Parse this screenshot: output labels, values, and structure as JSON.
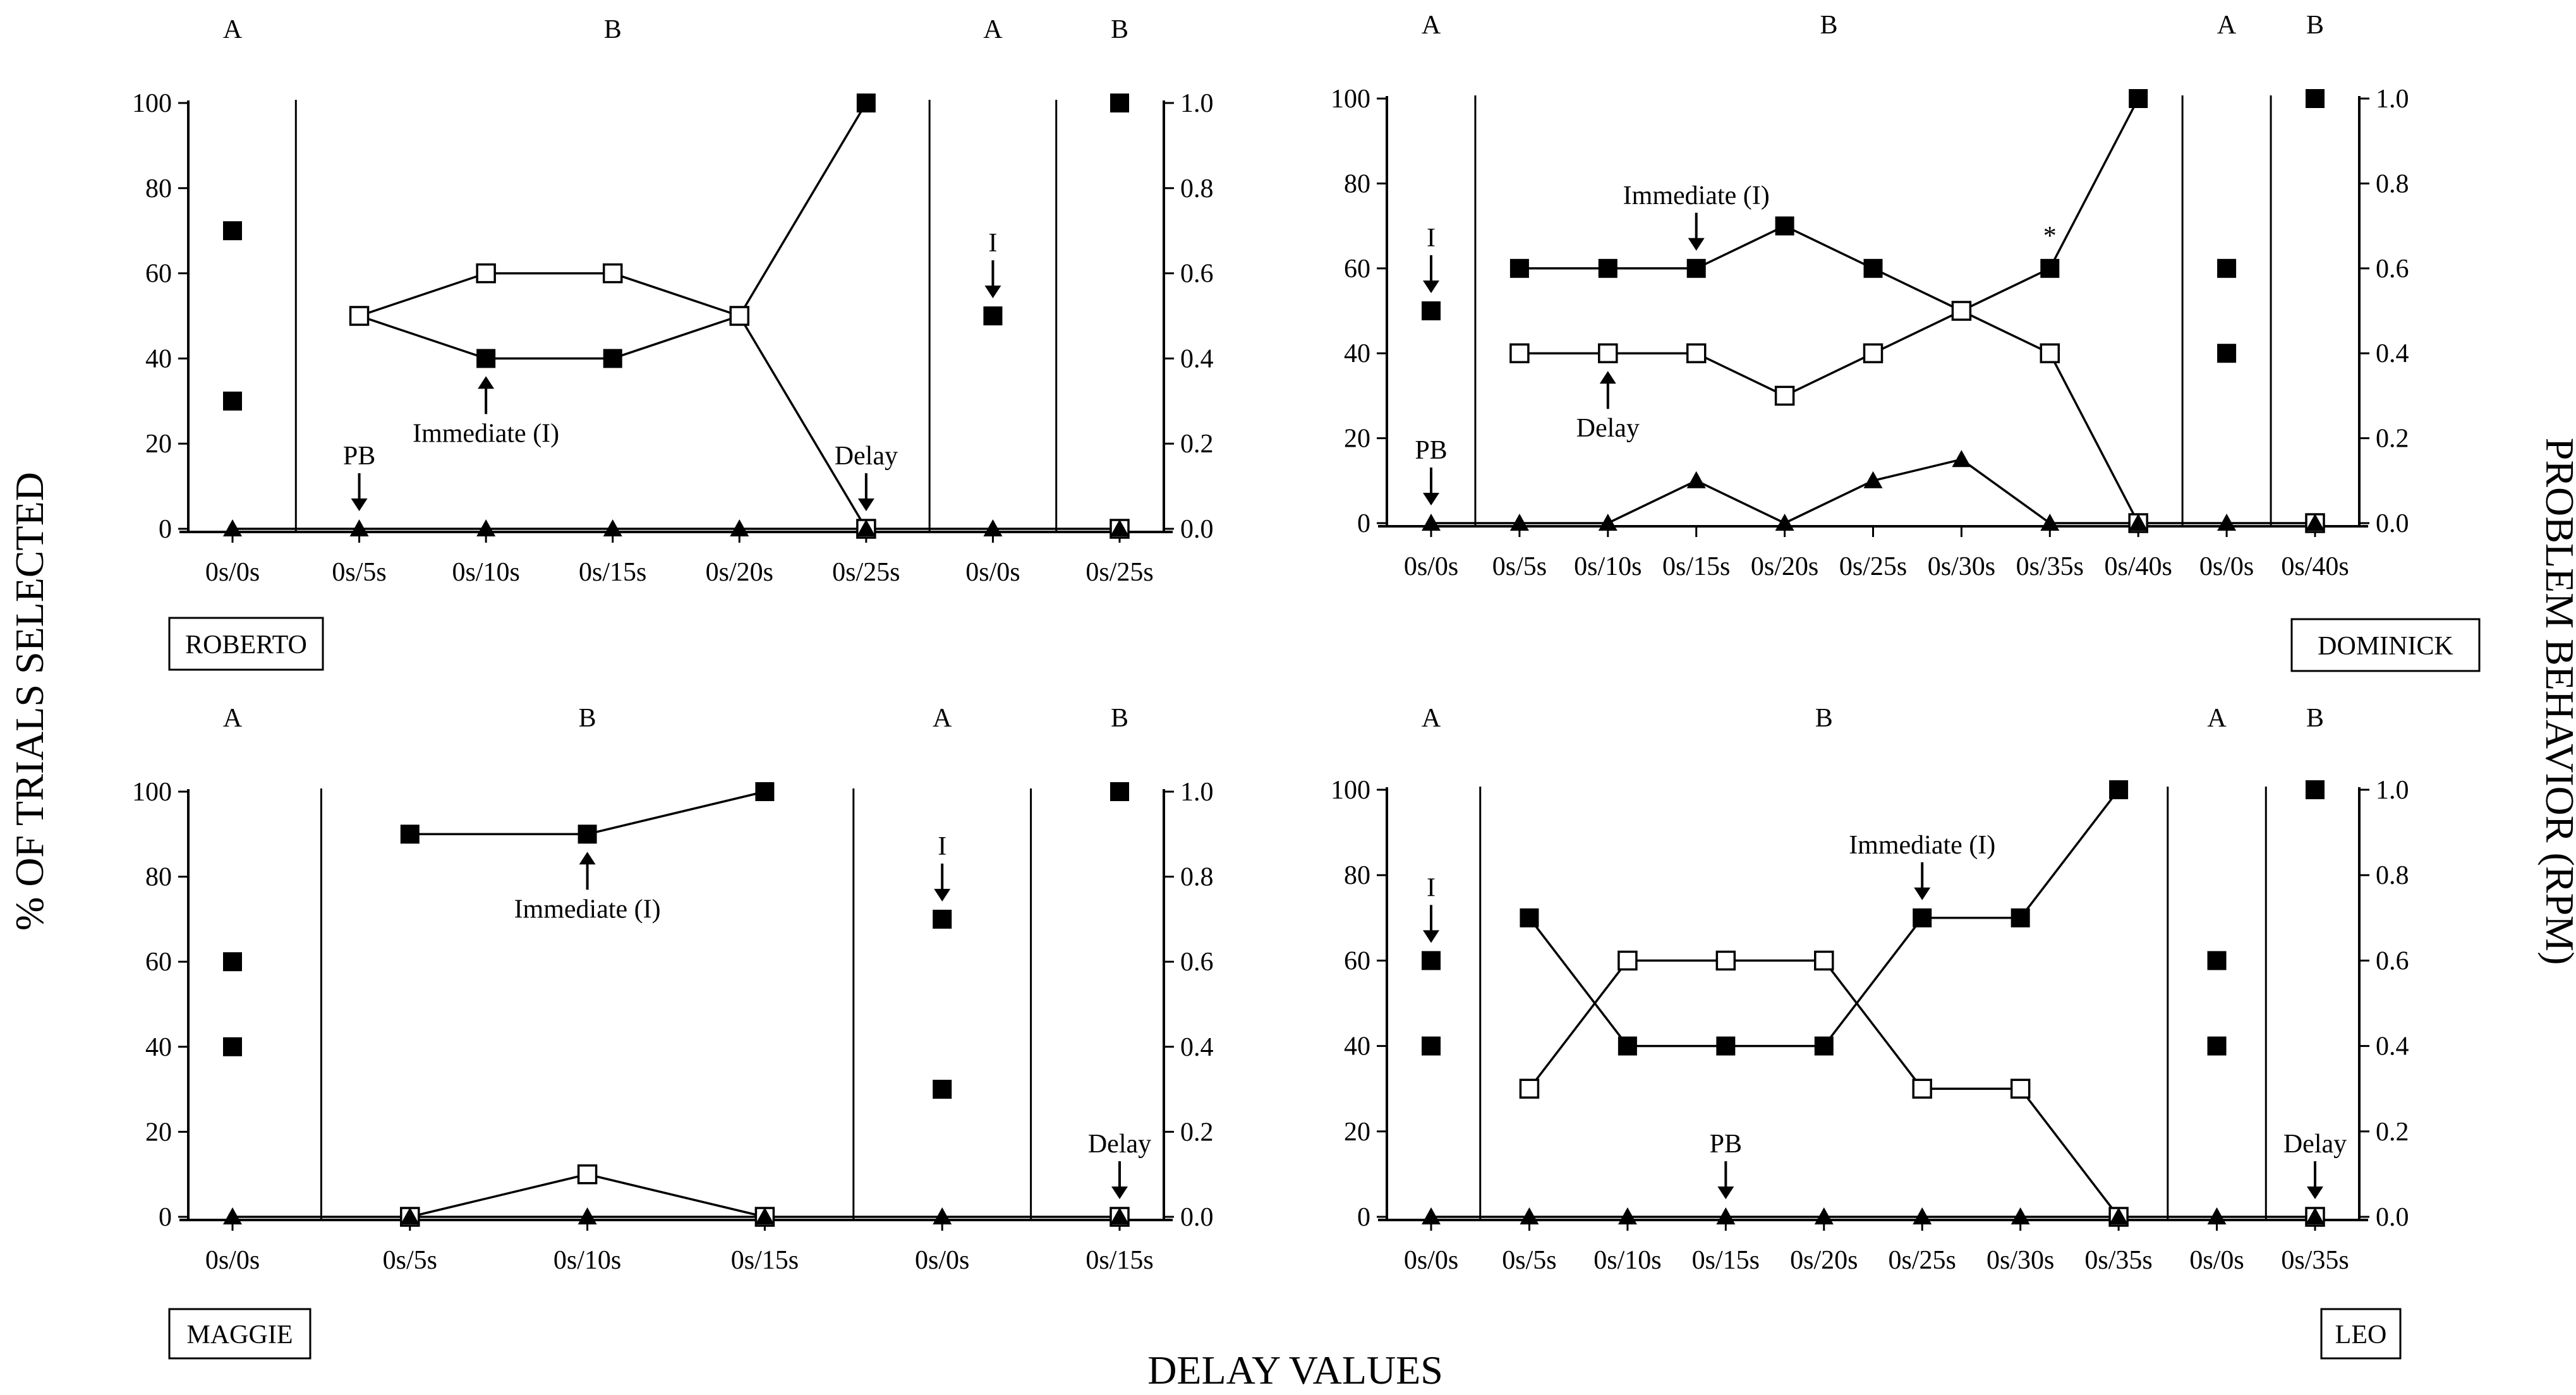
{
  "figure": {
    "y_left_label": "% OF TRIALS SELECTED",
    "y_right_label": "PROBLEM BEHAVIOR (RPM)",
    "x_label": "DELAY VALUES",
    "colors": {
      "ink": "#000000",
      "open_marker_fill": "#ffffff"
    }
  },
  "chart_data": [
    {
      "type": "line",
      "participant": "ROBERTO",
      "categories": [
        "0s/0s",
        "0s/5s",
        "0s/10s",
        "0s/15s",
        "0s/20s",
        "0s/25s",
        "0s/0s",
        "0s/25s"
      ],
      "phases": [
        {
          "label": "A",
          "start": 0,
          "end": 0
        },
        {
          "label": "B",
          "start": 1,
          "end": 5
        },
        {
          "label": "A",
          "start": 6,
          "end": 6
        },
        {
          "label": "B",
          "start": 7,
          "end": 7
        }
      ],
      "ylim_left": [
        0,
        100
      ],
      "yticks_left": [
        0,
        20,
        40,
        60,
        80,
        100
      ],
      "ylim_right": [
        0,
        1.0
      ],
      "yticks_right": [
        "0.0",
        "0.2",
        "0.4",
        "0.6",
        "0.8",
        "1.0"
      ],
      "series": [
        {
          "name": "Immediate (I)",
          "marker": "filled-square",
          "points": [
            [
              0,
              30
            ],
            [
              1,
              50
            ],
            [
              2,
              40
            ],
            [
              3,
              40
            ],
            [
              4,
              50
            ],
            [
              5,
              100
            ],
            [
              6,
              50
            ],
            [
              7,
              100
            ]
          ],
          "segments": [
            [
              1,
              5
            ]
          ]
        },
        {
          "name": "Immediate (I) (baseline second point)",
          "marker": "filled-square",
          "points": [
            [
              0,
              70
            ]
          ],
          "segments": []
        },
        {
          "name": "Delay",
          "marker": "open-square",
          "points": [
            [
              1,
              50
            ],
            [
              2,
              60
            ],
            [
              3,
              60
            ],
            [
              4,
              50
            ],
            [
              5,
              0
            ],
            [
              7,
              0
            ]
          ],
          "segments": [
            [
              1,
              5
            ]
          ]
        },
        {
          "name": "PB",
          "marker": "filled-triangle",
          "axis": "right",
          "points": [
            [
              0,
              0
            ],
            [
              1,
              0
            ],
            [
              2,
              0
            ],
            [
              3,
              0
            ],
            [
              4,
              0
            ],
            [
              5,
              0
            ],
            [
              6,
              0
            ],
            [
              7,
              0
            ]
          ],
          "segments": [
            [
              0,
              7
            ]
          ]
        }
      ],
      "annotations": [
        {
          "text": "PB",
          "x": 1,
          "y": 0,
          "dir": "down"
        },
        {
          "text": "Immediate (I)",
          "x": 2,
          "y": 40,
          "dir": "up"
        },
        {
          "text": "Delay",
          "x": 5,
          "y": 0,
          "dir": "down"
        },
        {
          "text": "I",
          "x": 6,
          "y": 50,
          "dir": "down"
        }
      ]
    },
    {
      "type": "line",
      "participant": "DOMINICK",
      "categories": [
        "0s/0s",
        "0s/5s",
        "0s/10s",
        "0s/15s",
        "0s/20s",
        "0s/25s",
        "0s/30s",
        "0s/35s",
        "0s/40s",
        "0s/0s",
        "0s/40s"
      ],
      "phases": [
        {
          "label": "A",
          "start": 0,
          "end": 0
        },
        {
          "label": "B",
          "start": 1,
          "end": 8
        },
        {
          "label": "A",
          "start": 9,
          "end": 9
        },
        {
          "label": "B",
          "start": 10,
          "end": 10
        }
      ],
      "ylim_left": [
        0,
        100
      ],
      "yticks_left": [
        0,
        20,
        40,
        60,
        80,
        100
      ],
      "ylim_right": [
        0,
        1.0
      ],
      "yticks_right": [
        "0.0",
        "0.2",
        "0.4",
        "0.6",
        "0.8",
        "1.0"
      ],
      "series": [
        {
          "name": "Immediate (I)",
          "marker": "filled-square",
          "points": [
            [
              0,
              50
            ],
            [
              1,
              60
            ],
            [
              2,
              60
            ],
            [
              3,
              60
            ],
            [
              4,
              70
            ],
            [
              5,
              60
            ],
            [
              6,
              50
            ],
            [
              7,
              60
            ],
            [
              8,
              100
            ],
            [
              9,
              40
            ],
            [
              10,
              100
            ]
          ],
          "segments": [
            [
              1,
              8
            ]
          ]
        },
        {
          "name": "Immediate (I) (baseline second point)",
          "marker": "filled-square",
          "points": [
            [
              9,
              60
            ]
          ],
          "segments": []
        },
        {
          "name": "Delay",
          "marker": "open-square",
          "points": [
            [
              1,
              40
            ],
            [
              2,
              40
            ],
            [
              3,
              40
            ],
            [
              4,
              30
            ],
            [
              5,
              40
            ],
            [
              6,
              50
            ],
            [
              7,
              40
            ],
            [
              8,
              0
            ],
            [
              10,
              0
            ]
          ],
          "segments": [
            [
              1,
              8
            ]
          ]
        },
        {
          "name": "PB",
          "marker": "filled-triangle",
          "axis": "right",
          "points": [
            [
              0,
              0
            ],
            [
              1,
              0
            ],
            [
              2,
              0
            ],
            [
              3,
              0.1
            ],
            [
              4,
              0
            ],
            [
              5,
              0.1
            ],
            [
              6,
              0.15
            ],
            [
              7,
              0
            ],
            [
              8,
              0
            ],
            [
              9,
              0
            ],
            [
              10,
              0
            ]
          ],
          "segments": [
            [
              0,
              10
            ]
          ]
        }
      ],
      "annotations": [
        {
          "text": "I",
          "x": 0,
          "y": 50,
          "dir": "down"
        },
        {
          "text": "PB",
          "x": 0,
          "y": 0,
          "dir": "down"
        },
        {
          "text": "Delay",
          "x": 2,
          "y": 40,
          "dir": "up"
        },
        {
          "text": "Immediate (I)",
          "x": 3,
          "y": 60,
          "dir": "down"
        },
        {
          "text": "*",
          "x": 7,
          "y": 60,
          "dir": "none"
        }
      ]
    },
    {
      "type": "line",
      "participant": "MAGGIE",
      "categories": [
        "0s/0s",
        "0s/5s",
        "0s/10s",
        "0s/15s",
        "0s/0s",
        "0s/15s"
      ],
      "phases": [
        {
          "label": "A",
          "start": 0,
          "end": 0
        },
        {
          "label": "B",
          "start": 1,
          "end": 3
        },
        {
          "label": "A",
          "start": 4,
          "end": 4
        },
        {
          "label": "B",
          "start": 5,
          "end": 5
        }
      ],
      "ylim_left": [
        0,
        100
      ],
      "yticks_left": [
        0,
        20,
        40,
        60,
        80,
        100
      ],
      "ylim_right": [
        0,
        1.0
      ],
      "yticks_right": [
        "0.0",
        "0.2",
        "0.4",
        "0.6",
        "0.8",
        "1.0"
      ],
      "series": [
        {
          "name": "Immediate (I)",
          "marker": "filled-square",
          "points": [
            [
              0,
              40
            ],
            [
              1,
              90
            ],
            [
              2,
              90
            ],
            [
              3,
              100
            ],
            [
              4,
              70
            ],
            [
              5,
              100
            ]
          ],
          "segments": [
            [
              1,
              3
            ]
          ]
        },
        {
          "name": "Immediate (I) (baseline second point)",
          "marker": "filled-square",
          "points": [
            [
              0,
              60
            ],
            [
              4,
              30
            ]
          ],
          "segments": []
        },
        {
          "name": "Delay",
          "marker": "open-square",
          "points": [
            [
              1,
              0
            ],
            [
              2,
              10
            ],
            [
              3,
              0
            ],
            [
              5,
              0
            ]
          ],
          "segments": [
            [
              1,
              3
            ]
          ]
        },
        {
          "name": "PB",
          "marker": "filled-triangle",
          "axis": "right",
          "points": [
            [
              0,
              0
            ],
            [
              1,
              0
            ],
            [
              2,
              0
            ],
            [
              3,
              0
            ],
            [
              4,
              0
            ],
            [
              5,
              0
            ]
          ],
          "segments": [
            [
              0,
              5
            ]
          ]
        }
      ],
      "annotations": [
        {
          "text": "Immediate (I)",
          "x": 2,
          "y": 90,
          "dir": "up"
        },
        {
          "text": "I",
          "x": 4,
          "y": 70,
          "dir": "down"
        },
        {
          "text": "Delay",
          "x": 5,
          "y": 0,
          "dir": "down"
        }
      ]
    },
    {
      "type": "line",
      "participant": "LEO",
      "categories": [
        "0s/0s",
        "0s/5s",
        "0s/10s",
        "0s/15s",
        "0s/20s",
        "0s/25s",
        "0s/30s",
        "0s/35s",
        "0s/0s",
        "0s/35s"
      ],
      "phases": [
        {
          "label": "A",
          "start": 0,
          "end": 0
        },
        {
          "label": "B",
          "start": 1,
          "end": 7
        },
        {
          "label": "A",
          "start": 8,
          "end": 8
        },
        {
          "label": "B",
          "start": 9,
          "end": 9
        }
      ],
      "ylim_left": [
        0,
        100
      ],
      "yticks_left": [
        0,
        20,
        40,
        60,
        80,
        100
      ],
      "ylim_right": [
        0,
        1.0
      ],
      "yticks_right": [
        "0.0",
        "0.2",
        "0.4",
        "0.6",
        "0.8",
        "1.0"
      ],
      "series": [
        {
          "name": "Immediate (I)",
          "marker": "filled-square",
          "points": [
            [
              0,
              60
            ],
            [
              1,
              70
            ],
            [
              2,
              40
            ],
            [
              3,
              40
            ],
            [
              4,
              40
            ],
            [
              5,
              70
            ],
            [
              6,
              70
            ],
            [
              7,
              100
            ],
            [
              8,
              40
            ],
            [
              9,
              100
            ]
          ],
          "segments": [
            [
              1,
              7
            ]
          ]
        },
        {
          "name": "Immediate (I) (baseline second point)",
          "marker": "filled-square",
          "points": [
            [
              0,
              40
            ],
            [
              8,
              60
            ]
          ],
          "segments": []
        },
        {
          "name": "Delay",
          "marker": "open-square",
          "points": [
            [
              1,
              30
            ],
            [
              2,
              60
            ],
            [
              3,
              60
            ],
            [
              4,
              60
            ],
            [
              5,
              30
            ],
            [
              6,
              30
            ],
            [
              7,
              0
            ],
            [
              9,
              0
            ]
          ],
          "segments": [
            [
              1,
              7
            ]
          ]
        },
        {
          "name": "PB",
          "marker": "filled-triangle",
          "axis": "right",
          "points": [
            [
              0,
              0
            ],
            [
              1,
              0
            ],
            [
              2,
              0
            ],
            [
              3,
              0
            ],
            [
              4,
              0
            ],
            [
              5,
              0
            ],
            [
              6,
              0
            ],
            [
              7,
              0
            ],
            [
              8,
              0
            ],
            [
              9,
              0
            ]
          ],
          "segments": [
            [
              0,
              9
            ]
          ]
        }
      ],
      "annotations": [
        {
          "text": "I",
          "x": 0,
          "y": 60,
          "dir": "down"
        },
        {
          "text": "PB",
          "x": 3,
          "y": 0,
          "dir": "down"
        },
        {
          "text": "Immediate (I)",
          "x": 5,
          "y": 70,
          "dir": "down"
        },
        {
          "text": "Delay",
          "x": 9,
          "y": 0,
          "dir": "down"
        }
      ]
    }
  ]
}
